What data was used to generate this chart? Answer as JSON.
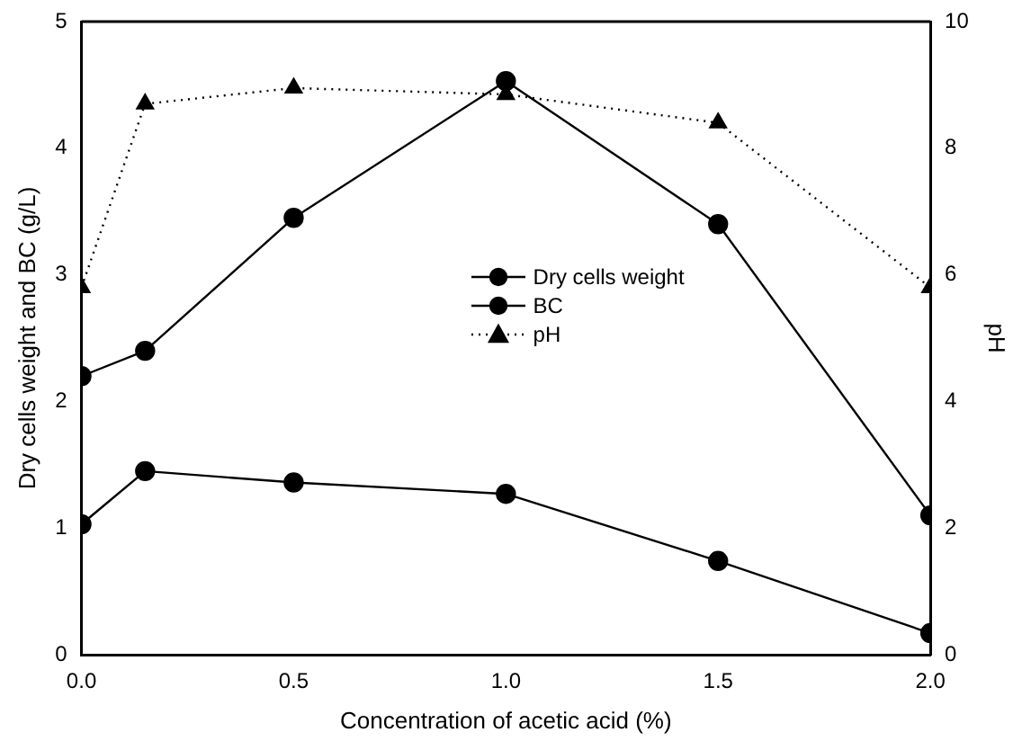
{
  "chart_data": {
    "type": "line",
    "xlabel": "Concentration of acetic acid (%)",
    "ylabel": "Dry cells weight and BC (g/L)",
    "y2label": "pH",
    "x": [
      0,
      0.15,
      0.5,
      1.0,
      1.5,
      2.0
    ],
    "series": [
      {
        "name": "Dry cells weight",
        "color": "#000000",
        "marker": "circle",
        "line_style": "solid",
        "values": [
          2.2,
          2.4,
          3.45,
          4.53,
          3.4,
          1.1
        ]
      },
      {
        "name": "BC",
        "color": "#000000",
        "marker": "circle",
        "line_style": "solid",
        "values": [
          1.03,
          1.45,
          1.36,
          1.27,
          0.74,
          0.17
        ]
      },
      {
        "name": "pH",
        "color": "#000000",
        "marker": "triangle",
        "line_style": "dotted",
        "axis": "y2",
        "values": [
          5.8,
          8.7,
          8.95,
          8.85,
          8.4,
          5.8
        ]
      }
    ],
    "xlim": [
      0,
      2.0
    ],
    "xticks": [
      {
        "value": 0,
        "label": "0.0"
      },
      0.5,
      {
        "value": 1,
        "label": "1.0"
      },
      1.5,
      {
        "value": 2,
        "label": "2.0"
      }
    ],
    "ylim": [
      0,
      5
    ],
    "yticks": [
      0,
      1,
      2,
      3,
      4,
      5
    ],
    "y2lim": [
      0,
      10
    ],
    "y2ticks": [
      0,
      2,
      4,
      6,
      8,
      10
    ],
    "grid": false,
    "legend": "center"
  }
}
